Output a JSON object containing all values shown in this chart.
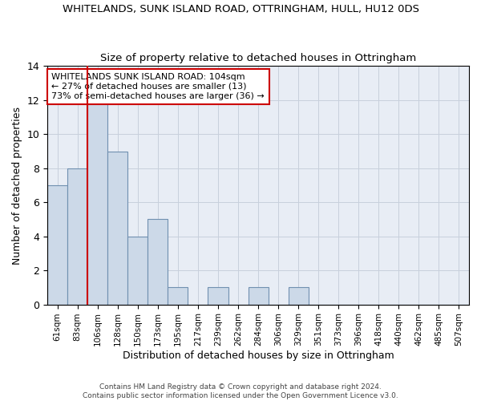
{
  "title": "WHITELANDS, SUNK ISLAND ROAD, OTTRINGHAM, HULL, HU12 0DS",
  "subtitle": "Size of property relative to detached houses in Ottringham",
  "xlabel": "Distribution of detached houses by size in Ottringham",
  "ylabel": "Number of detached properties",
  "bar_labels": [
    "61sqm",
    "83sqm",
    "106sqm",
    "128sqm",
    "150sqm",
    "173sqm",
    "195sqm",
    "217sqm",
    "239sqm",
    "262sqm",
    "284sqm",
    "306sqm",
    "329sqm",
    "351sqm",
    "373sqm",
    "396sqm",
    "418sqm",
    "440sqm",
    "462sqm",
    "485sqm",
    "507sqm"
  ],
  "bar_values": [
    7,
    8,
    12,
    9,
    4,
    5,
    1,
    0,
    1,
    0,
    1,
    0,
    1,
    0,
    0,
    0,
    0,
    0,
    0,
    0,
    0
  ],
  "bar_color": "#ccd9e8",
  "bar_edge_color": "#7090b0",
  "vline_color": "#cc0000",
  "annotation_text": "WHITELANDS SUNK ISLAND ROAD: 104sqm\n← 27% of detached houses are smaller (13)\n73% of semi-detached houses are larger (36) →",
  "annotation_box_color": "white",
  "annotation_box_edge": "#cc0000",
  "ylim": [
    0,
    14
  ],
  "yticks": [
    0,
    2,
    4,
    6,
    8,
    10,
    12,
    14
  ],
  "grid_color": "#c8d0dc",
  "bg_color": "#e8edf5",
  "footer": "Contains HM Land Registry data © Crown copyright and database right 2024.\nContains public sector information licensed under the Open Government Licence v3.0.",
  "title_fontsize": 9.5,
  "subtitle_fontsize": 9.5,
  "annotation_fontsize": 8,
  "tick_fontsize": 7.5,
  "ylabel_fontsize": 9,
  "xlabel_fontsize": 9,
  "footer_fontsize": 6.5
}
